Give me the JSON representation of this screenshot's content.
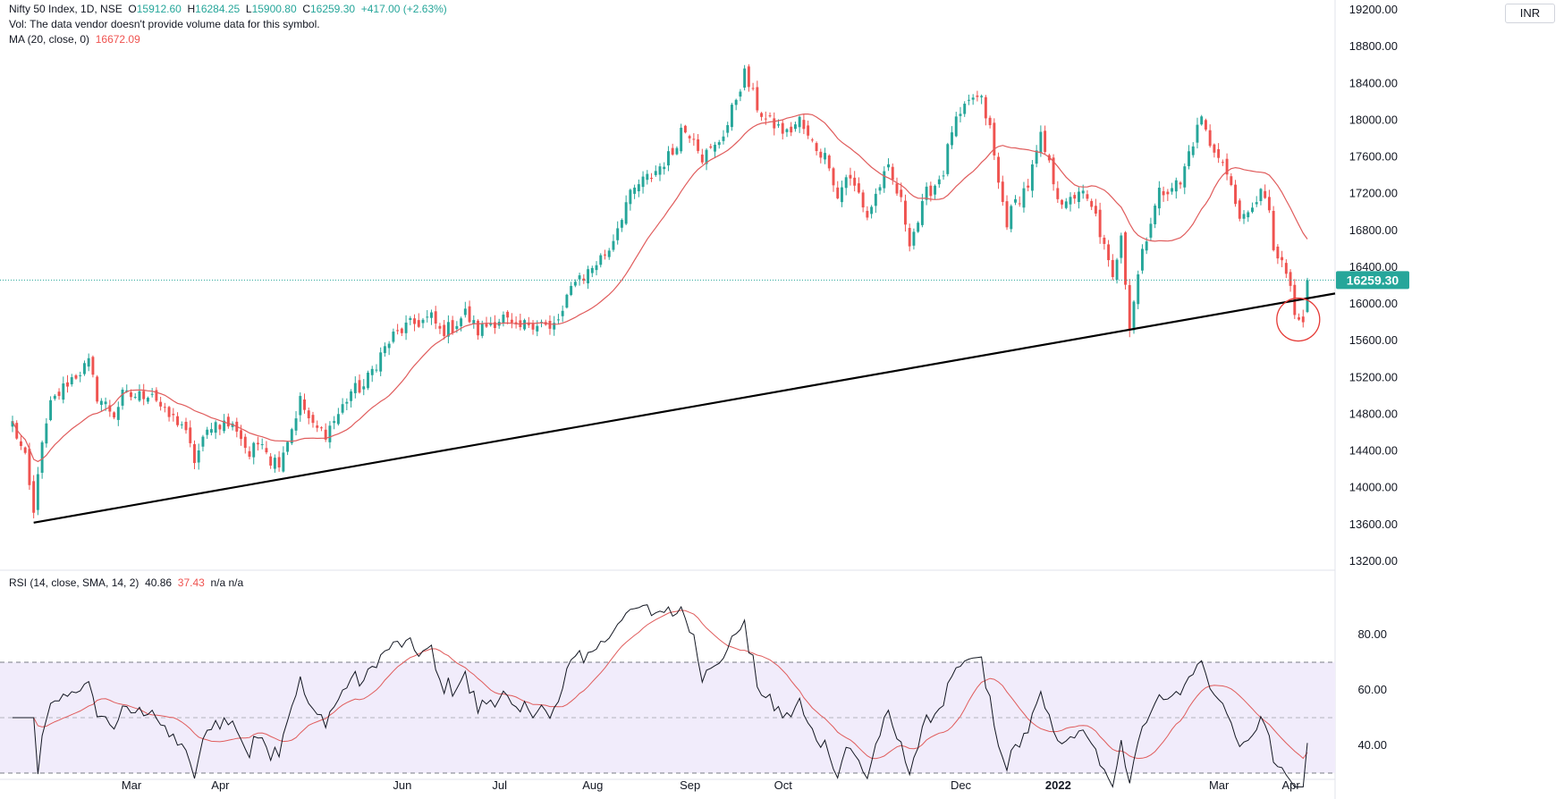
{
  "symbol_legend": {
    "name": "Nifty 50 Index, 1D, NSE",
    "o_label": "O",
    "o": "15912.60",
    "h_label": "H",
    "h": "16284.25",
    "l_label": "L",
    "l": "15900.80",
    "c_label": "C",
    "c": "16259.30",
    "change": "+417.00 (+2.63%)",
    "vol_note": "Vol: The data vendor doesn't provide volume data for this symbol.",
    "ma_label": "MA (20, close, 0)",
    "ma_value": "16672.09"
  },
  "rsi_legend": {
    "label": "RSI (14, close, SMA, 14, 2)",
    "rsi_value": "40.86",
    "sma_value": "37.43",
    "extra": "n/a n/a"
  },
  "currency": "INR",
  "last_price_tag": "16259.30",
  "colors": {
    "up": "#26a69a",
    "down": "#ef5350",
    "ma": "#e05c5c",
    "rsi": "#131722",
    "rsi_band": "#f1ecfb",
    "trendline": "#000000",
    "price_line": "#26a69a"
  },
  "chart_data": [
    {
      "type": "candlestick",
      "title": "Nifty 50 Index, 1D, NSE",
      "x_tick_labels": [
        "Mar",
        "Apr",
        "Jun",
        "Jul",
        "Aug",
        "Sep",
        "Oct",
        "Dec",
        "2022",
        "Mar",
        "Apr"
      ],
      "y_tick_labels": [
        "19200.00",
        "18800.00",
        "18400.00",
        "18000.00",
        "17600.00",
        "17200.00",
        "16800.00",
        "16400.00",
        "16000.00",
        "15600.00",
        "15200.00",
        "14800.00",
        "14400.00",
        "14000.00",
        "13600.00",
        "13200.00"
      ],
      "ylim": [
        13200,
        19200
      ],
      "close_anchors": [
        [
          0,
          14700
        ],
        [
          3,
          14300
        ],
        [
          5,
          13700
        ],
        [
          6,
          14200
        ],
        [
          9,
          14900
        ],
        [
          13,
          15150
        ],
        [
          18,
          15350
        ],
        [
          20,
          15000
        ],
        [
          24,
          14800
        ],
        [
          26,
          15000
        ],
        [
          30,
          15000
        ],
        [
          33,
          15050
        ],
        [
          36,
          14800
        ],
        [
          40,
          14700
        ],
        [
          43,
          14300
        ],
        [
          47,
          14700
        ],
        [
          50,
          14700
        ],
        [
          53,
          14650
        ],
        [
          56,
          14350
        ],
        [
          59,
          14550
        ],
        [
          61,
          14300
        ],
        [
          63,
          14300
        ],
        [
          66,
          14650
        ],
        [
          68,
          14950
        ],
        [
          71,
          14650
        ],
        [
          74,
          14600
        ],
        [
          77,
          14800
        ],
        [
          80,
          15050
        ],
        [
          83,
          15100
        ],
        [
          87,
          15450
        ],
        [
          90,
          15650
        ],
        [
          93,
          15750
        ],
        [
          96,
          15800
        ],
        [
          99,
          15850
        ],
        [
          101,
          15700
        ],
        [
          104,
          15750
        ],
        [
          107,
          15900
        ],
        [
          110,
          15700
        ],
        [
          113,
          15800
        ],
        [
          116,
          15850
        ],
        [
          119,
          15700
        ],
        [
          122,
          15800
        ],
        [
          125,
          15800
        ],
        [
          127,
          15700
        ],
        [
          130,
          15900
        ],
        [
          133,
          16300
        ],
        [
          135,
          16300
        ],
        [
          138,
          16450
        ],
        [
          141,
          16600
        ],
        [
          145,
          17100
        ],
        [
          148,
          17300
        ],
        [
          151,
          17400
        ],
        [
          153,
          17500
        ],
        [
          156,
          17650
        ],
        [
          158,
          17900
        ],
        [
          161,
          17850
        ],
        [
          163,
          17600
        ],
        [
          166,
          17700
        ],
        [
          169,
          17950
        ],
        [
          171,
          18250
        ],
        [
          173,
          18500
        ],
        [
          176,
          18150
        ],
        [
          178,
          18000
        ],
        [
          180,
          17950
        ],
        [
          183,
          17850
        ],
        [
          186,
          18000
        ],
        [
          188,
          17800
        ],
        [
          190,
          17700
        ],
        [
          193,
          17550
        ],
        [
          195,
          17150
        ],
        [
          197,
          17400
        ],
        [
          200,
          17200
        ],
        [
          202,
          16950
        ],
        [
          205,
          17300
        ],
        [
          207,
          17450
        ],
        [
          210,
          17100
        ],
        [
          212,
          16700
        ],
        [
          214,
          16900
        ],
        [
          216,
          17200
        ],
        [
          218,
          17300
        ],
        [
          220,
          17450
        ],
        [
          222,
          17900
        ],
        [
          225,
          18100
        ],
        [
          227,
          18250
        ],
        [
          229,
          18200
        ],
        [
          231,
          17900
        ],
        [
          233,
          17300
        ],
        [
          235,
          16900
        ],
        [
          237,
          17100
        ],
        [
          240,
          17300
        ],
        [
          243,
          17800
        ],
        [
          245,
          17500
        ],
        [
          247,
          17200
        ],
        [
          249,
          17050
        ],
        [
          252,
          17250
        ],
        [
          254,
          17100
        ],
        [
          256,
          16950
        ],
        [
          258,
          16600
        ],
        [
          260,
          16250
        ],
        [
          262,
          16800
        ],
        [
          264,
          15750
        ],
        [
          265,
          16050
        ],
        [
          267,
          16600
        ],
        [
          269,
          16900
        ],
        [
          271,
          17200
        ],
        [
          274,
          17300
        ],
        [
          276,
          17300
        ],
        [
          278,
          17650
        ],
        [
          280,
          17900
        ],
        [
          281,
          18050
        ],
        [
          283,
          17700
        ],
        [
          285,
          17650
        ],
        [
          287,
          17400
        ],
        [
          289,
          17100
        ],
        [
          291,
          16900
        ],
        [
          293,
          17000
        ],
        [
          295,
          17300
        ],
        [
          297,
          16950
        ],
        [
          298,
          16600
        ],
        [
          300,
          16400
        ],
        [
          302,
          16200
        ],
        [
          303,
          15850
        ],
        [
          305,
          15800
        ],
        [
          306,
          16259.3
        ]
      ]
    },
    {
      "type": "line",
      "title": "RSI (14, close, SMA, 14, 2)",
      "y_tick_labels": [
        "80.00",
        "60.00",
        "40.00"
      ],
      "bands": {
        "upper": 70,
        "middle": 50,
        "lower": 30
      },
      "last_rsi": 40.86,
      "last_sma": 37.43,
      "ylim": [
        20,
        95
      ]
    }
  ]
}
